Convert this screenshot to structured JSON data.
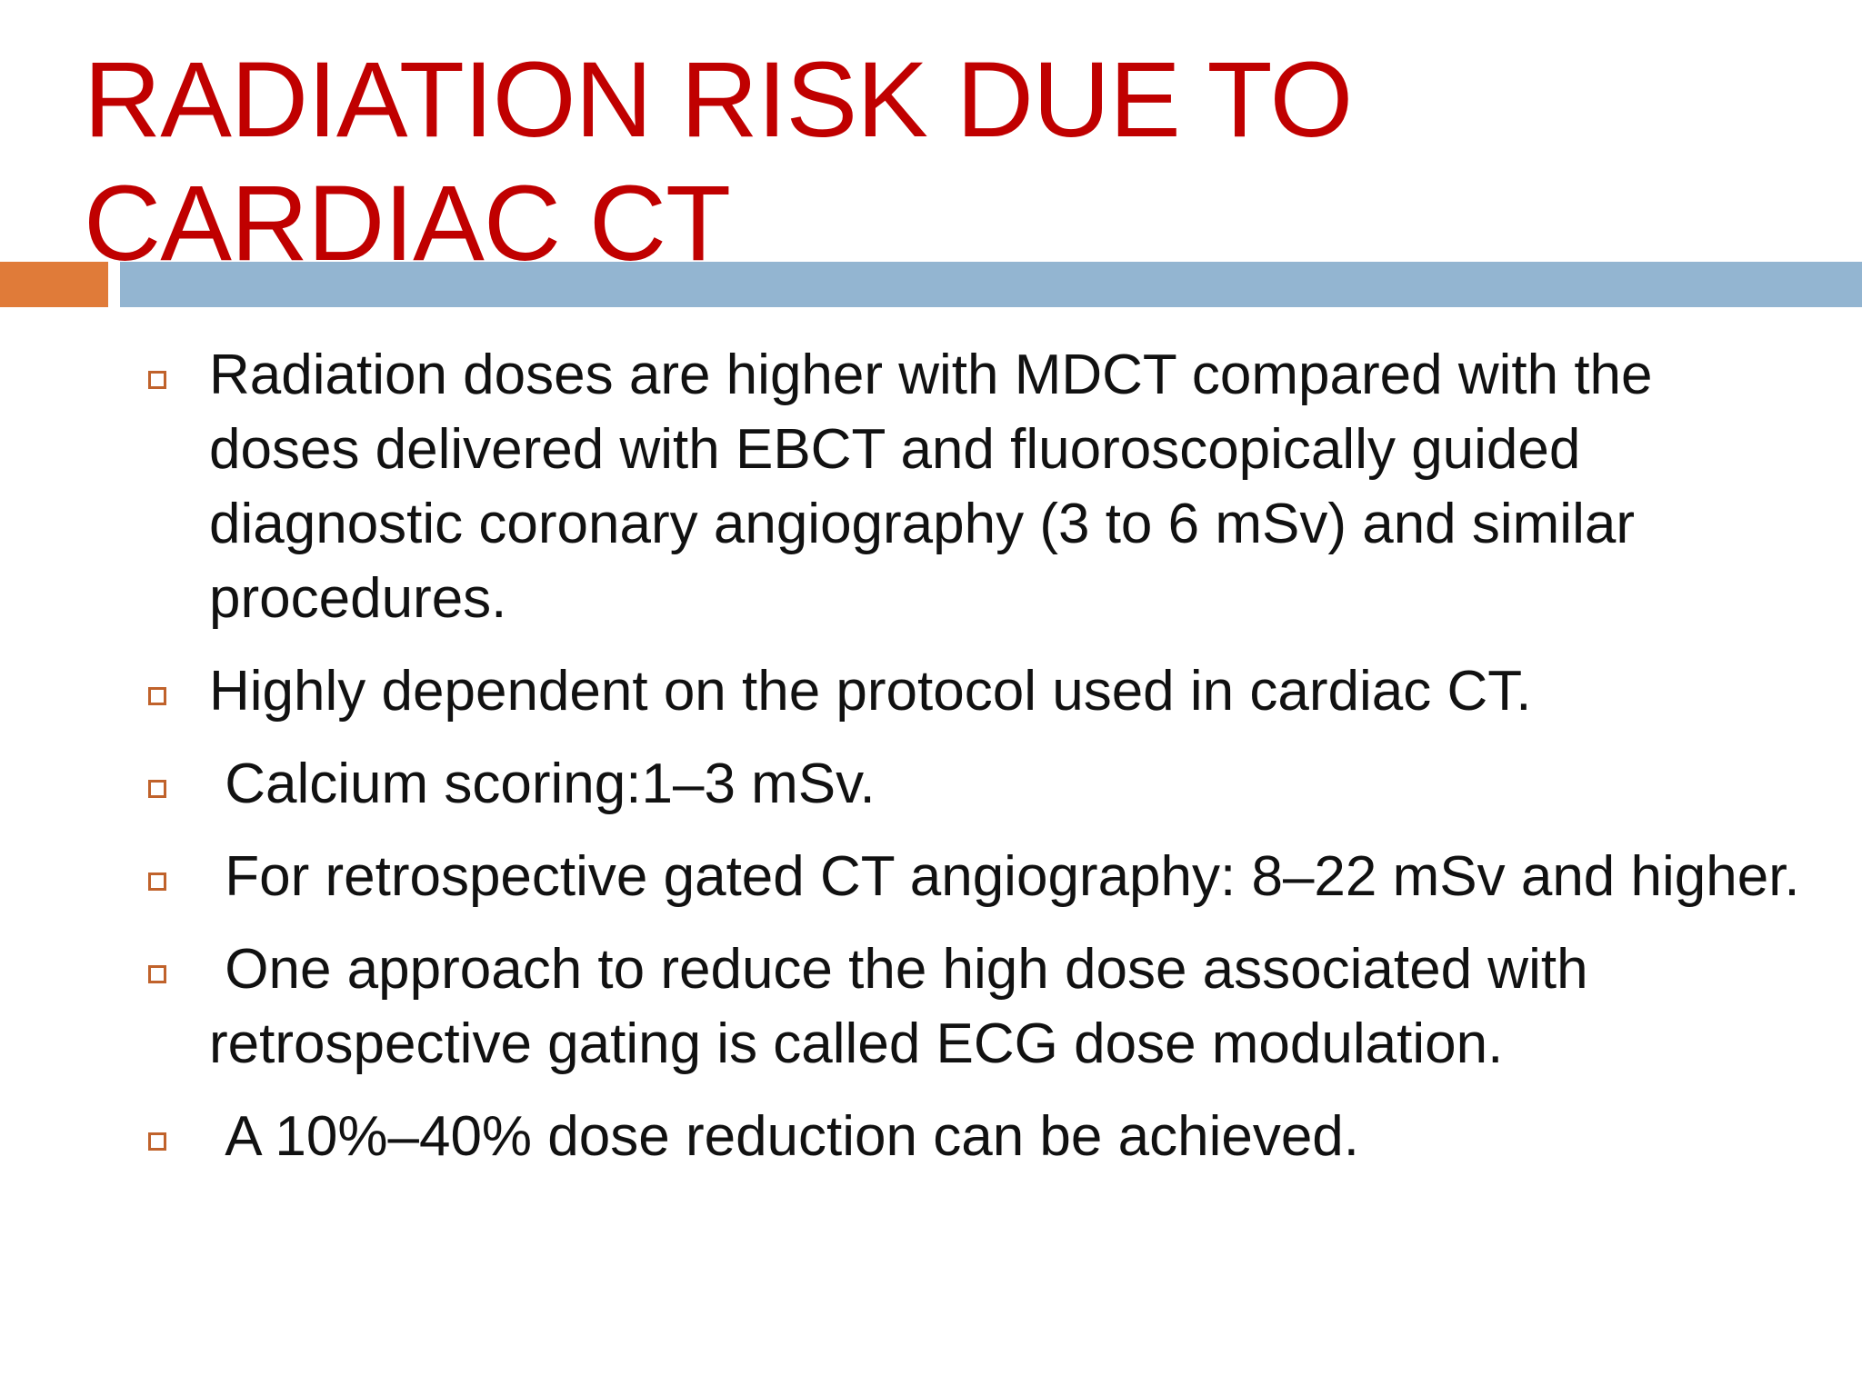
{
  "slide": {
    "title": "RADIATION RISK DUE TO CARDIAC CT",
    "accent_colors": {
      "title": "#C00000",
      "bar_left": "#E07B39",
      "bar_right": "#93B5D1",
      "bullet_marker": "#C0622B"
    },
    "bullet_marker_icon": "hollow-square-icon",
    "bullets": [
      "Radiation doses are higher with MDCT compared with the doses delivered with EBCT and fluoroscopically guided diagnostic coronary angiography (3 to 6 mSv) and similar procedures.",
      "Highly dependent on the protocol used in cardiac CT.",
      " Calcium scoring:1–3 mSv.",
      " For retrospective gated CT angiography: 8–22 mSv and higher.",
      " One approach to reduce the high dose associated with retrospective gating is called ECG dose modulation.",
      " A 10%–40% dose reduction can be achieved."
    ]
  }
}
